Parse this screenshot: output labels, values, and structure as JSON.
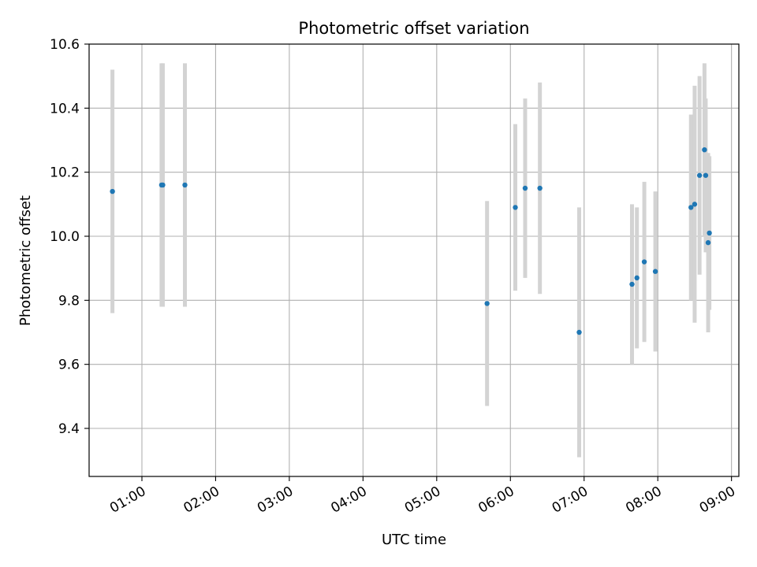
{
  "chart_data": {
    "type": "scatter",
    "title": "Photometric offset variation",
    "xlabel": "UTC time",
    "ylabel": "Photometric offset",
    "x_unit": "UTC time (HH:MM)",
    "xlim": [
      "00:17",
      "09:06"
    ],
    "ylim": [
      9.25,
      10.6
    ],
    "xticks": [
      "01:00",
      "02:00",
      "03:00",
      "04:00",
      "05:00",
      "06:00",
      "07:00",
      "08:00",
      "09:00"
    ],
    "yticks": [
      9.4,
      9.6,
      9.8,
      10.0,
      10.2,
      10.4,
      10.6
    ],
    "ytick_labels": [
      "9.4",
      "9.6",
      "9.8",
      "10.0",
      "10.2",
      "10.4",
      "10.6"
    ],
    "grid": true,
    "marker_color": "#1f77b4",
    "errorbar_color": "#d3d3d3",
    "points": [
      {
        "t": "00:36",
        "y": 10.14,
        "err": 0.38
      },
      {
        "t": "01:16",
        "y": 10.16,
        "err": 0.38
      },
      {
        "t": "01:17",
        "y": 10.16,
        "err": 0.38
      },
      {
        "t": "01:35",
        "y": 10.16,
        "err": 0.38
      },
      {
        "t": "05:41",
        "y": 9.79,
        "err": 0.32
      },
      {
        "t": "06:04",
        "y": 10.09,
        "err": 0.26
      },
      {
        "t": "06:12",
        "y": 10.15,
        "err": 0.28
      },
      {
        "t": "06:24",
        "y": 10.15,
        "err": 0.33
      },
      {
        "t": "06:56",
        "y": 9.7,
        "err": 0.39
      },
      {
        "t": "07:39",
        "y": 9.85,
        "err": 0.25
      },
      {
        "t": "07:43",
        "y": 9.87,
        "err": 0.22
      },
      {
        "t": "07:49",
        "y": 9.92,
        "err": 0.25
      },
      {
        "t": "07:58",
        "y": 9.89,
        "err": 0.25
      },
      {
        "t": "08:27",
        "y": 10.09,
        "err": 0.29
      },
      {
        "t": "08:30",
        "y": 10.1,
        "err": 0.37
      },
      {
        "t": "08:34",
        "y": 10.19,
        "err": 0.31
      },
      {
        "t": "08:38",
        "y": 10.27,
        "err": 0.27
      },
      {
        "t": "08:39",
        "y": 10.19,
        "err": 0.24
      },
      {
        "t": "08:41",
        "y": 9.98,
        "err": 0.28
      },
      {
        "t": "08:42",
        "y": 10.01,
        "err": 0.24
      }
    ]
  }
}
